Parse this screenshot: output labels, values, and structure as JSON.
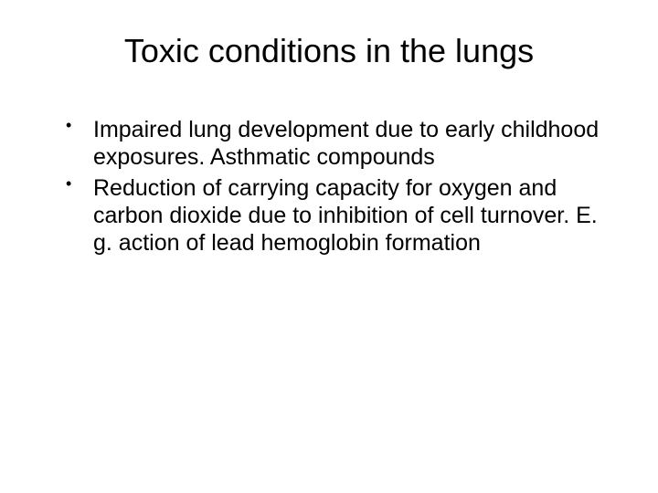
{
  "slide": {
    "title": "Toxic conditions in the lungs",
    "bullets": [
      "Impaired lung development due to early childhood exposures.  Asthmatic compounds",
      "Reduction of carrying capacity for oxygen and carbon dioxide due to inhibition of cell turnover. E. g. action of lead hemoglobin formation"
    ],
    "background_color": "#ffffff",
    "text_color": "#000000",
    "title_fontsize": 36,
    "body_fontsize": 25
  }
}
